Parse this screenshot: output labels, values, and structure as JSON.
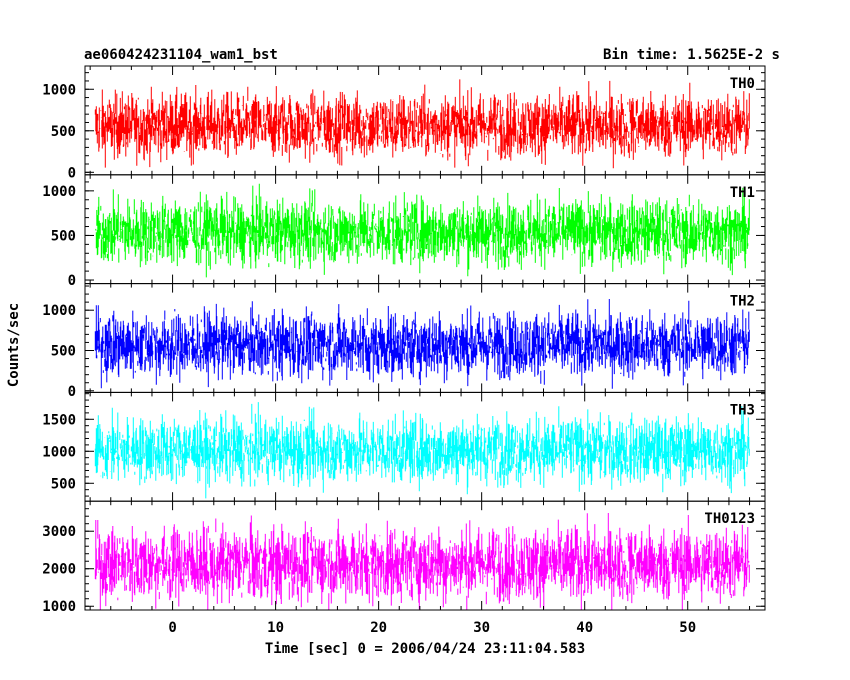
{
  "chart_data": {
    "type": "line",
    "title": "ae060424231104_wam1_bst",
    "subtitle": "Bin time: 1.5625E-2 s",
    "xlabel": "Time [sec] 0 = 2006/04/24 23:11:04.583",
    "ylabel": "Counts/sec",
    "xlim": [
      -8.5,
      57.5
    ],
    "x_range": [
      -7.5,
      56
    ],
    "x_ticks": [
      "0",
      "10",
      "20",
      "30",
      "40",
      "50"
    ],
    "grid": false,
    "panels": [
      {
        "name": "TH0",
        "color": "#ff0000",
        "ylim": [
          -30,
          1280
        ],
        "y_ticks": [
          "0",
          "500",
          "1000"
        ],
        "min": 50,
        "max": 1270,
        "mean": 560,
        "spread": 190
      },
      {
        "name": "TH1",
        "color": "#00ff00",
        "ylim": [
          -40,
          1180
        ],
        "y_ticks": [
          "0",
          "500",
          "1000"
        ],
        "min": 30,
        "max": 1160,
        "mean": 540,
        "spread": 180
      },
      {
        "name": "TH2",
        "color": "#0000ff",
        "ylim": [
          -20,
          1330
        ],
        "y_ticks": [
          "0",
          "500",
          "1000"
        ],
        "min": 20,
        "max": 1310,
        "mean": 570,
        "spread": 200
      },
      {
        "name": "TH3",
        "color": "#00ffff",
        "ylim": [
          220,
          1920
        ],
        "y_ticks": [
          "500",
          "1000",
          "1500"
        ],
        "min": 250,
        "max": 1890,
        "mean": 1020,
        "spread": 250
      },
      {
        "name": "TH0123",
        "color": "#ff00ff",
        "ylim": [
          900,
          3800
        ],
        "y_ticks": [
          "1000",
          "2000",
          "3000"
        ],
        "min": 900,
        "max": 3780,
        "mean": 2120,
        "spread": 480
      }
    ]
  }
}
